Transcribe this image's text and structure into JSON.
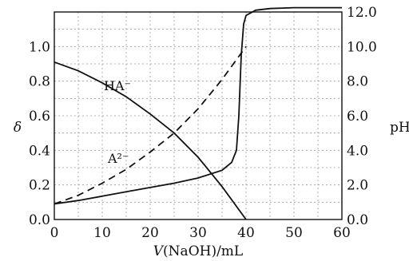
{
  "chart_data": {
    "type": "line",
    "xlabel": "V(NaOH)/mL",
    "ylabel": "δ",
    "y2label": "pH",
    "xlim": [
      0,
      60
    ],
    "ylim": [
      0,
      1.2
    ],
    "y2lim": [
      0,
      12.0
    ],
    "x_ticks": [
      "0",
      "10",
      "20",
      "30",
      "40",
      "50",
      "60"
    ],
    "y_ticks": [
      "0.0",
      "0.2",
      "0.4",
      "0.6",
      "0.8",
      "1.0"
    ],
    "y2_ticks": [
      "0.0",
      "2.0",
      "4.0",
      "6.0",
      "8.0",
      "10.0",
      "12.0"
    ],
    "grid": true,
    "series": [
      {
        "name": "HA⁻",
        "axis": "left",
        "style": "solid",
        "x": [
          0,
          5,
          10,
          15,
          20,
          25,
          30,
          35,
          40
        ],
        "y": [
          0.91,
          0.86,
          0.79,
          0.71,
          0.61,
          0.5,
          0.36,
          0.19,
          0.0
        ]
      },
      {
        "name": "A²⁻",
        "axis": "left",
        "style": "dashed",
        "x": [
          0,
          5,
          10,
          15,
          20,
          25,
          30,
          35,
          40
        ],
        "y": [
          0.09,
          0.14,
          0.21,
          0.29,
          0.39,
          0.5,
          0.64,
          0.81,
          1.0
        ]
      },
      {
        "name": "pH",
        "axis": "right",
        "style": "solid",
        "x": [
          0,
          5,
          10,
          15,
          20,
          25,
          30,
          35,
          37,
          38,
          38.5,
          39,
          39.5,
          40,
          42,
          45,
          50,
          55,
          60
        ],
        "y": [
          0.9,
          1.1,
          1.35,
          1.6,
          1.85,
          2.1,
          2.4,
          2.85,
          3.3,
          4.0,
          6.0,
          9.5,
          11.3,
          11.8,
          12.1,
          12.2,
          12.25,
          12.25,
          12.25
        ]
      }
    ],
    "annotations": [
      "HA⁻",
      "A²⁻"
    ]
  }
}
